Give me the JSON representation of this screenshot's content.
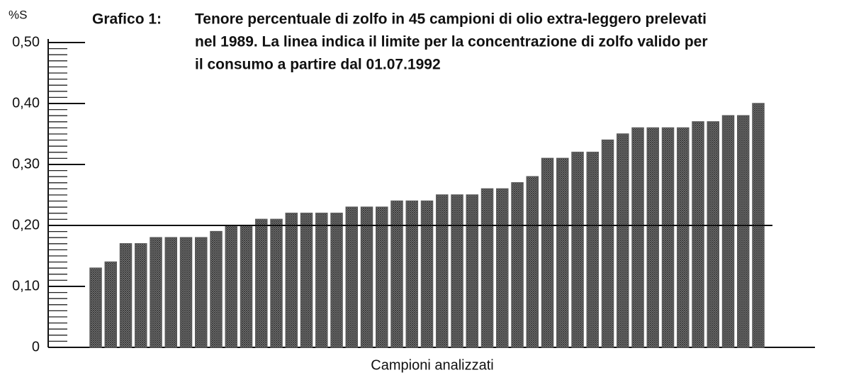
{
  "chart_data": {
    "type": "bar",
    "title_prefix": "Grafico 1:",
    "title": [
      "Tenore percentuale di zolfo in 45 campioni di olio extra-leggero prelevati",
      "nel 1989. La linea indica il limite per la concentrazione di zolfo valido per",
      "il consumo a partire dal 01.07.1992"
    ],
    "y_label": "%S",
    "x_label": "Campioni analizzati",
    "values": [
      0.13,
      0.14,
      0.17,
      0.17,
      0.18,
      0.18,
      0.18,
      0.18,
      0.19,
      0.2,
      0.2,
      0.21,
      0.21,
      0.22,
      0.22,
      0.22,
      0.22,
      0.23,
      0.23,
      0.23,
      0.24,
      0.24,
      0.24,
      0.25,
      0.25,
      0.25,
      0.26,
      0.26,
      0.27,
      0.28,
      0.31,
      0.31,
      0.32,
      0.32,
      0.34,
      0.35,
      0.36,
      0.36,
      0.36,
      0.36,
      0.37,
      0.37,
      0.38,
      0.38,
      0.4
    ],
    "color": "#5a5a5a",
    "limit_line": 0.2,
    "ylim": [
      0,
      0.5
    ],
    "yticks": [
      0,
      {
        "value": 0.1,
        "label": "0,10"
      },
      {
        "value": 0.2,
        "label": "0,20"
      },
      {
        "value": 0.3,
        "label": "0,30"
      },
      {
        "value": 0.4,
        "label": "0,40"
      },
      {
        "value": 0.5,
        "label": "0,50"
      }
    ],
    "minor_yticks": [
      0,
      0.01,
      0.02,
      0.03,
      0.04,
      0.05,
      0.06,
      0.07,
      0.08,
      0.09,
      0.1,
      0.11,
      0.12,
      0.13,
      0.14,
      0.15,
      0.16,
      0.17,
      0.18,
      0.19,
      0.2,
      0.21,
      0.22,
      0.23,
      0.24,
      0.25,
      0.26,
      0.27,
      0.28,
      0.29,
      0.3,
      0.31,
      0.32,
      0.33,
      0.34,
      0.35,
      0.36,
      0.37,
      0.38,
      0.39,
      0.4,
      0.41,
      0.42,
      0.43,
      0.44,
      0.45,
      0.46,
      0.47,
      0.48,
      0.49,
      0.5
    ]
  }
}
